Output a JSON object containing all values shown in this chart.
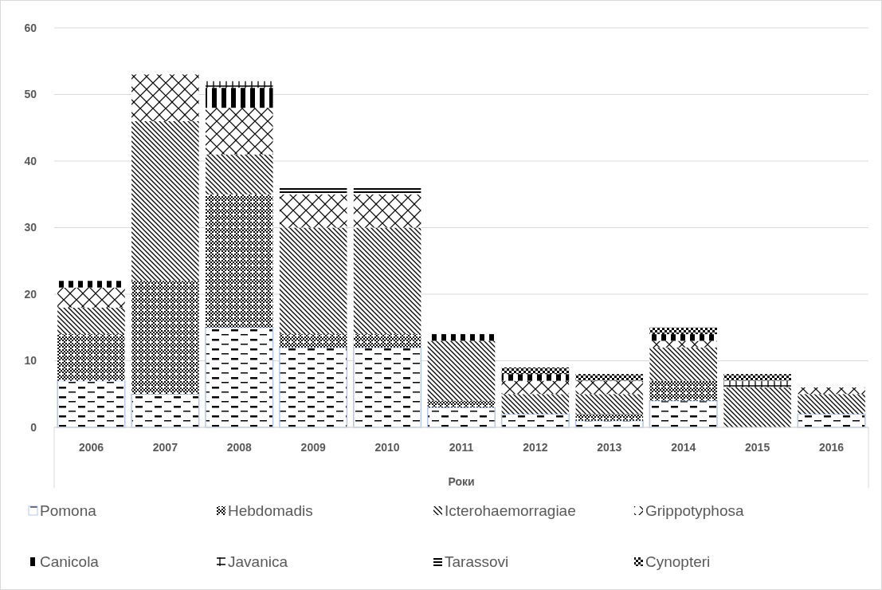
{
  "chart_data": {
    "type": "bar",
    "stacked": true,
    "xlabel": "Роки",
    "categories": [
      "2006",
      "2007",
      "2008",
      "2009",
      "2010",
      "2011",
      "2012",
      "2013",
      "2014",
      "2015",
      "2016"
    ],
    "series": [
      {
        "name": "Pomona",
        "color": "#b4c7e7",
        "values": [
          7,
          5,
          15,
          12,
          12,
          3,
          2,
          1,
          4,
          0,
          2
        ]
      },
      {
        "name": "Hebdomadis",
        "color": "#000000",
        "values": [
          7,
          17,
          20,
          2,
          2,
          1,
          0,
          1,
          3,
          0,
          0
        ]
      },
      {
        "name": "Icterohaemorragiae",
        "color": "#000000",
        "values": [
          4,
          24,
          6,
          16,
          16,
          9,
          3,
          3,
          5,
          6,
          3
        ]
      },
      {
        "name": "Grippotyphosa",
        "color": "#000000",
        "values": [
          3,
          7,
          7,
          5,
          5,
          0,
          2,
          2,
          1,
          0,
          1
        ]
      },
      {
        "name": "Canicola",
        "color": "#000000",
        "values": [
          1,
          0,
          3,
          0,
          0,
          1,
          1,
          0,
          1,
          0,
          0
        ]
      },
      {
        "name": "Javanica",
        "color": "#000000",
        "values": [
          0,
          0,
          1,
          0,
          0,
          0,
          0,
          0,
          0,
          1,
          0
        ]
      },
      {
        "name": "Tarassovi",
        "color": "#000000",
        "values": [
          0,
          0,
          0,
          1,
          1,
          0,
          0,
          0,
          0,
          0,
          0
        ]
      },
      {
        "name": "Cynopteri",
        "color": "#000000",
        "values": [
          0,
          0,
          0,
          0,
          0,
          0,
          1,
          1,
          1,
          1,
          0
        ]
      }
    ],
    "ylim": [
      0,
      60
    ],
    "yticks": [
      0,
      10,
      20,
      30,
      40,
      50,
      60
    ],
    "grid": "y",
    "legend": "bottom"
  }
}
